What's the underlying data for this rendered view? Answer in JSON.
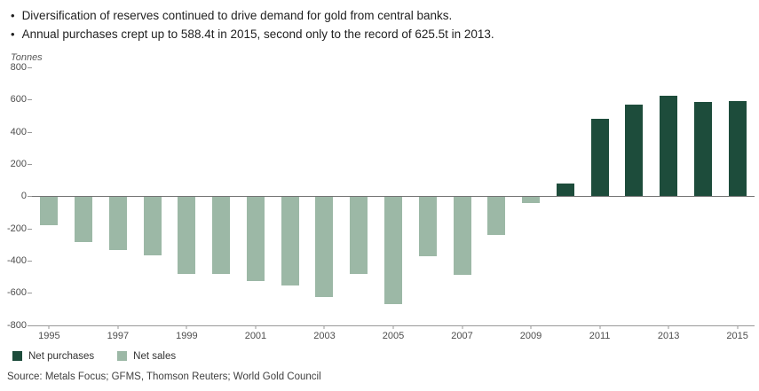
{
  "bullets": [
    "Diversification of reserves continued to drive demand for gold from central banks.",
    "Annual purchases crept up to 588.4t in 2015, second only to the record of 625.5t in 2013."
  ],
  "bullet_glyph": "•",
  "chart_data": {
    "type": "bar",
    "title": "",
    "ylabel": "Tonnes",
    "years": [
      1995,
      1996,
      1997,
      1998,
      1999,
      2000,
      2001,
      2002,
      2003,
      2004,
      2005,
      2006,
      2007,
      2008,
      2009,
      2010,
      2011,
      2012,
      2013,
      2014,
      2015
    ],
    "values": [
      -173,
      -279,
      -326,
      -363,
      -477,
      -479,
      -520,
      -547,
      -620,
      -479,
      -663,
      -365,
      -484,
      -235,
      -34,
      79,
      481,
      569,
      625.5,
      584,
      588.4
    ],
    "ylim": [
      -800,
      800
    ],
    "yticks": [
      800,
      600,
      400,
      200,
      0,
      -200,
      -400,
      -600,
      -800
    ],
    "x_label_step": 2,
    "grid": false,
    "legend_position": "bottom-left",
    "legend": [
      {
        "name": "Net purchases",
        "color": "#1d4c3b"
      },
      {
        "name": "Net sales",
        "color": "#9cb8a6"
      }
    ]
  },
  "source": "Source: Metals Focus; GFMS, Thomson Reuters; World Gold Council"
}
